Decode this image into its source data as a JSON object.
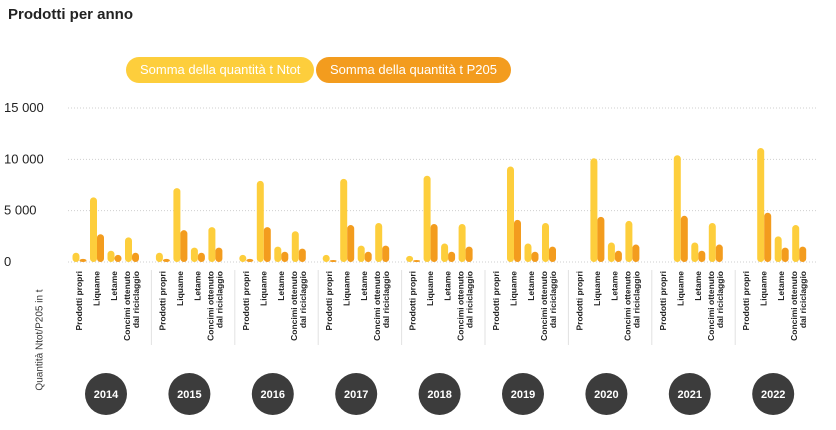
{
  "title": "Prodotti per anno",
  "colors": {
    "ntot": "#fdce3c",
    "p205": "#f39c1e",
    "year_badge": "#3c3c3c",
    "grid": "#cfcfcf",
    "text": "#222222"
  },
  "chart_data": {
    "type": "bar",
    "title": "Prodotti per anno",
    "ylabel": "Quantità Ntot/P205 in t",
    "xlabel": "",
    "ylim": [
      0,
      15000
    ],
    "yticks": [
      0,
      5000,
      10000,
      15000
    ],
    "ytick_labels": [
      "0",
      "5 000",
      "10 000",
      "15 000"
    ],
    "legend": [
      "Somma della quantità t Ntot",
      "Somma della quantità t P205"
    ],
    "legend_position": "top-left",
    "categories": [
      "Prodotti propri",
      "Liquame",
      "Letame",
      "Concimi ottenuto dal riciclaggio"
    ],
    "category_labels": [
      [
        "Prodotti propri"
      ],
      [
        "Liquame"
      ],
      [
        "Letame"
      ],
      [
        "Concimi ottenuto",
        "dal riciclaggio"
      ]
    ],
    "groups": [
      "2014",
      "2015",
      "2016",
      "2017",
      "2018",
      "2019",
      "2020",
      "2021",
      "2022"
    ],
    "series": [
      {
        "name": "Somma della quantità t Ntot",
        "values": [
          [
            900,
            6300,
            1100,
            2400
          ],
          [
            900,
            7200,
            1400,
            3400
          ],
          [
            700,
            7900,
            1500,
            3000
          ],
          [
            700,
            8100,
            1600,
            3800
          ],
          [
            600,
            8400,
            1800,
            3700
          ],
          [
            0,
            9300,
            1800,
            3800
          ],
          [
            0,
            10100,
            1900,
            4000
          ],
          [
            0,
            10400,
            1900,
            3800
          ],
          [
            0,
            11100,
            2500,
            3600
          ]
        ]
      },
      {
        "name": "Somma della quantità t P205",
        "values": [
          [
            300,
            2700,
            700,
            900
          ],
          [
            300,
            3100,
            900,
            1400
          ],
          [
            300,
            3400,
            1000,
            1300
          ],
          [
            200,
            3600,
            1000,
            1600
          ],
          [
            200,
            3700,
            1000,
            1500
          ],
          [
            0,
            4100,
            1000,
            1500
          ],
          [
            0,
            4400,
            1100,
            1700
          ],
          [
            0,
            4500,
            1100,
            1700
          ],
          [
            0,
            4800,
            1400,
            1500
          ]
        ]
      }
    ]
  }
}
